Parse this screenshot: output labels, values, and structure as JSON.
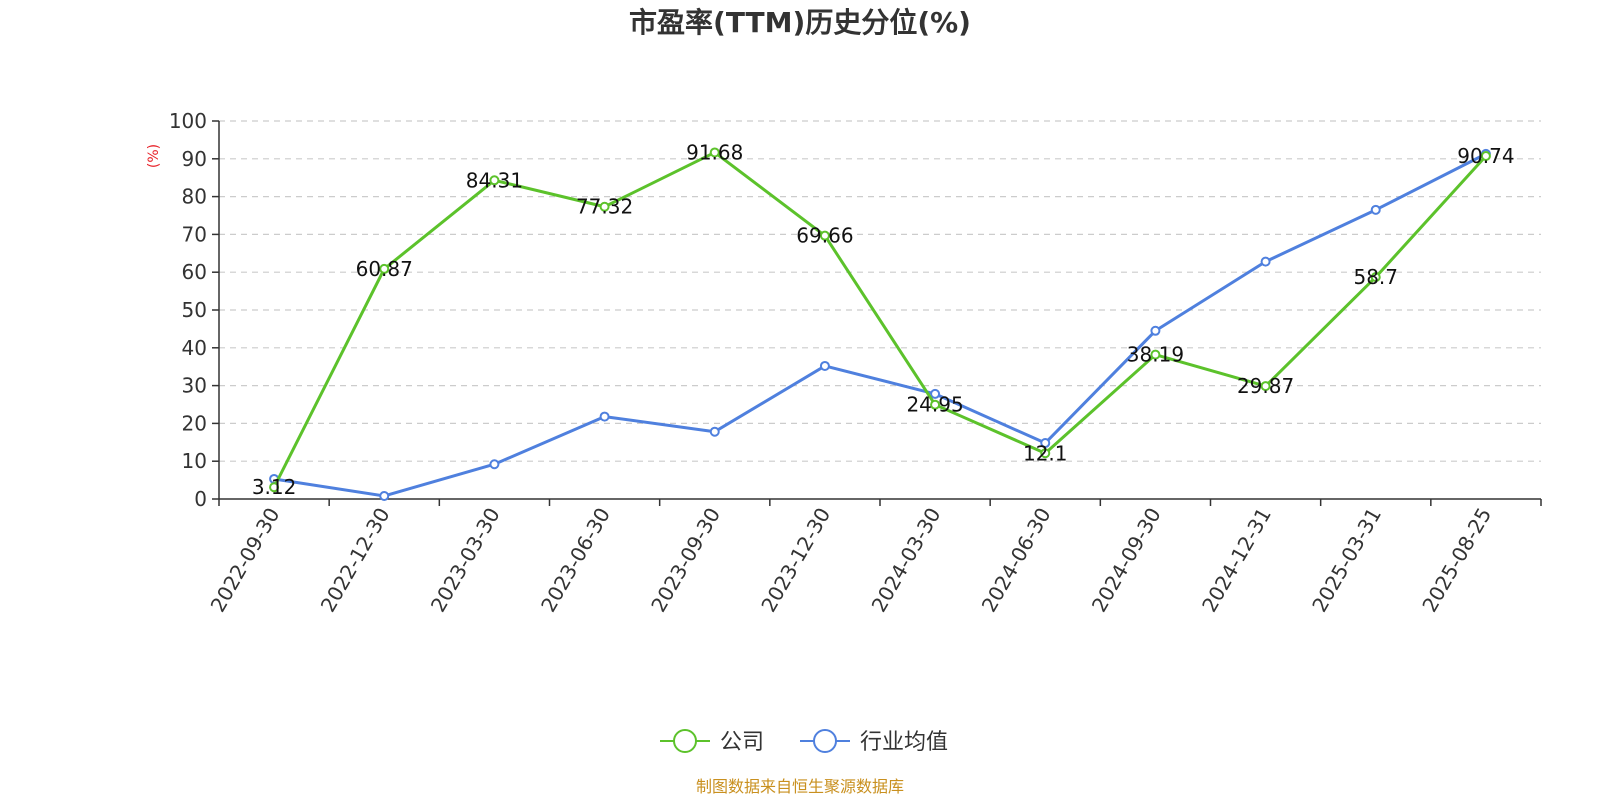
{
  "chart_data": {
    "type": "line",
    "title": "市盈率(TTM)历史分位(%)",
    "ylabel": "(%)",
    "xlabel": "",
    "ylim": [
      0,
      100
    ],
    "yticks": [
      0,
      10,
      20,
      30,
      40,
      50,
      60,
      70,
      80,
      90,
      100
    ],
    "grid": true,
    "legend_position": "bottom",
    "categories": [
      "2022-09-30",
      "2022-12-30",
      "2023-03-30",
      "2023-06-30",
      "2023-09-30",
      "2023-12-30",
      "2024-03-30",
      "2024-06-30",
      "2024-09-30",
      "2024-12-31",
      "2025-03-31",
      "2025-08-25"
    ],
    "series": [
      {
        "name": "公司",
        "color": "#5cc22b",
        "labels_shown": true,
        "values": [
          3.12,
          60.87,
          84.31,
          77.32,
          91.68,
          69.66,
          24.95,
          12.1,
          38.19,
          29.87,
          58.7,
          90.74
        ]
      },
      {
        "name": "行业均值",
        "color": "#4f80de",
        "labels_shown": false,
        "values": [
          5.3,
          0.8,
          9.2,
          21.8,
          17.8,
          35.2,
          27.8,
          14.8,
          44.5,
          62.8,
          76.5,
          91.3
        ]
      }
    ],
    "source": "制图数据来自恒生聚源数据库",
    "colors": {
      "ylabel": "#e8232a",
      "source": "#c9901f",
      "axis": "#333333",
      "grid": "#cccccc"
    }
  }
}
